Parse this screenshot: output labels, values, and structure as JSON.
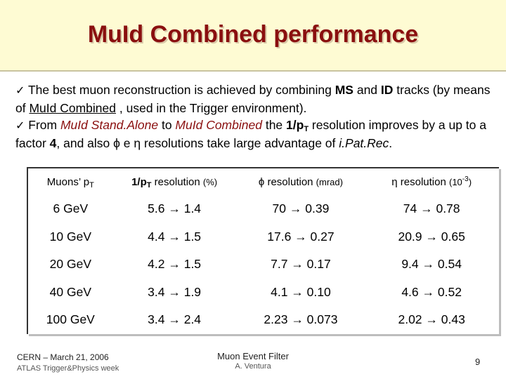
{
  "title": "MuId Combined performance",
  "bullets": {
    "check": "✓",
    "b1_t1": " The best muon reconstruction is achieved by combining ",
    "b1_ms": "MS",
    "b1_t2": " and ",
    "b1_id": "ID",
    "b1_t3": " tracks (by means of ",
    "b1_muid": "MuId Combined",
    "b1_t4": " , used in the Trigger environment).",
    "b2_t1": " From ",
    "b2_sa": "MuId Stand.Alone",
    "b2_t2": " to ",
    "b2_comb": "MuId Combined",
    "b2_t3": "  the ",
    "b2_res_pre": "1/p",
    "b2_res_sub": "T",
    "b2_t4": " resolution improves by a up to a factor ",
    "b2_factor": "4",
    "b2_t5": ", and also ",
    "b2_phi": "ϕ",
    "b2_e": " e ",
    "b2_eta": "η",
    "b2_t6": " resolutions take large advantage of ",
    "b2_ipat": "i.Pat.Rec",
    "b2_t7": "."
  },
  "table": {
    "headers": {
      "muons_pre": "Muons’ p",
      "muons_sub": "T",
      "pt_pre": "1/p",
      "pt_sub": "T",
      "pt_mid": " resolution ",
      "pt_unit": "(%)",
      "phi_sym": "ϕ",
      "phi_mid": " resolution ",
      "phi_unit": "(mrad)",
      "eta_sym": "η",
      "eta_mid": " resolution ",
      "eta_unit_pre": "(10",
      "eta_unit_sup": "-3",
      "eta_unit_post": ")"
    },
    "rows": [
      {
        "pt": "6 GeV",
        "inv_pt": "5.6 → 1.4",
        "phi": "70 → 0.39",
        "eta": "74 → 0.78"
      },
      {
        "pt": "10 GeV",
        "inv_pt": "4.4 → 1.5",
        "phi": "17.6 → 0.27",
        "eta": "20.9 → 0.65"
      },
      {
        "pt": "20 GeV",
        "inv_pt": "4.2 → 1.5",
        "phi": "7.7 → 0.17",
        "eta": "9.4 → 0.54"
      },
      {
        "pt": "40 GeV",
        "inv_pt": "3.4 → 1.9",
        "phi": "4.1 → 0.10",
        "eta": "4.6 → 0.52"
      },
      {
        "pt": "100 GeV",
        "inv_pt": "3.4 → 2.4",
        "phi": "2.23 → 0.073",
        "eta": "2.02 → 0.43"
      }
    ]
  },
  "footer": {
    "author_line": "CERN – March 21, 2006",
    "event_line": "ATLAS Trigger&Physics week",
    "talk_title": "Muon Event Filter",
    "speaker": "A. Ventura",
    "page": "9"
  },
  "colors": {
    "title": "#8a0f0f",
    "title_band": "#fefbd3",
    "accent_text": "#8a0f0f"
  }
}
